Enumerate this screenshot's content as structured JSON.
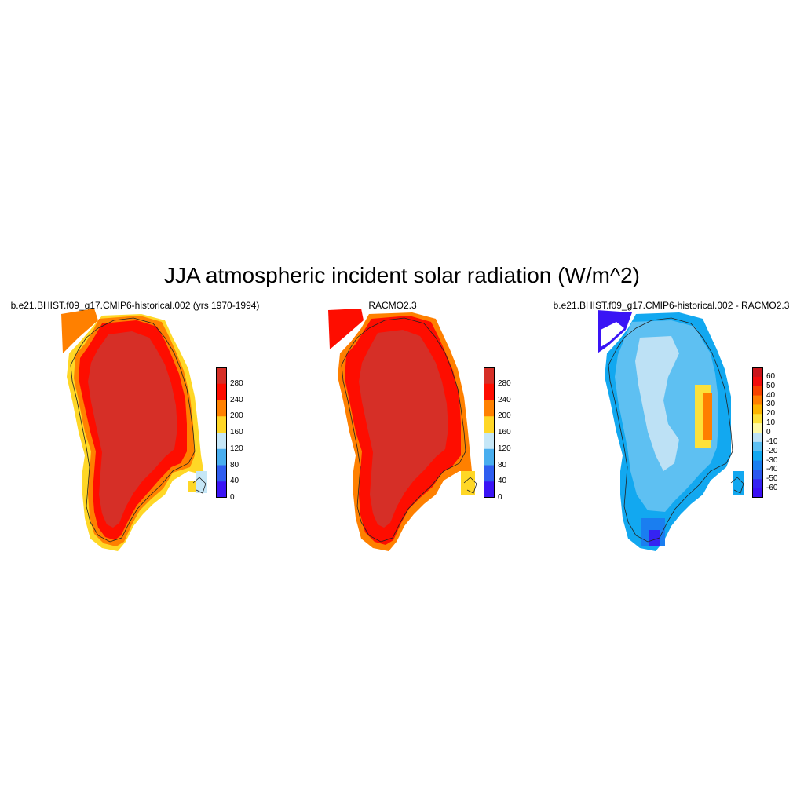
{
  "title": "JJA atmospheric incident solar radiation (W/m^2)",
  "panels": [
    {
      "title": "b.e21.BHIST.f09_g17.CMIP6-historical.002 (yrs 1970-1994)",
      "colorbar": {
        "labels": [
          "280",
          "240",
          "200",
          "160",
          "120",
          "80",
          "40",
          "0"
        ],
        "colors": [
          "#d62f27",
          "#fe0d00",
          "#ff8000",
          "#ffd726",
          "#c6e7f7",
          "#49aeef",
          "#2f5ef0",
          "#3a14f5"
        ]
      }
    },
    {
      "title": "RACMO2.3",
      "colorbar": {
        "labels": [
          "280",
          "240",
          "200",
          "160",
          "120",
          "80",
          "40",
          "0"
        ],
        "colors": [
          "#d62f27",
          "#fe0d00",
          "#ff8000",
          "#ffd726",
          "#c6e7f7",
          "#49aeef",
          "#2f5ef0",
          "#3a14f5"
        ]
      }
    },
    {
      "title": "b.e21.BHIST.f09_g17.CMIP6-historical.002 - RACMO2.3",
      "colorbar": {
        "labels": [
          "60",
          "50",
          "40",
          "30",
          "20",
          "10",
          "0",
          "-10",
          "-20",
          "-30",
          "-40",
          "-50",
          "-60"
        ],
        "colors": [
          "#c9151b",
          "#f20d0d",
          "#f84200",
          "#ff7e00",
          "#fcb400",
          "#fde13a",
          "#fef9a5",
          "#bde1f5",
          "#5ec0f2",
          "#12a8f0",
          "#1a7ef0",
          "#2b58ef",
          "#3523f2",
          "#3a0ff5"
        ]
      }
    }
  ]
}
